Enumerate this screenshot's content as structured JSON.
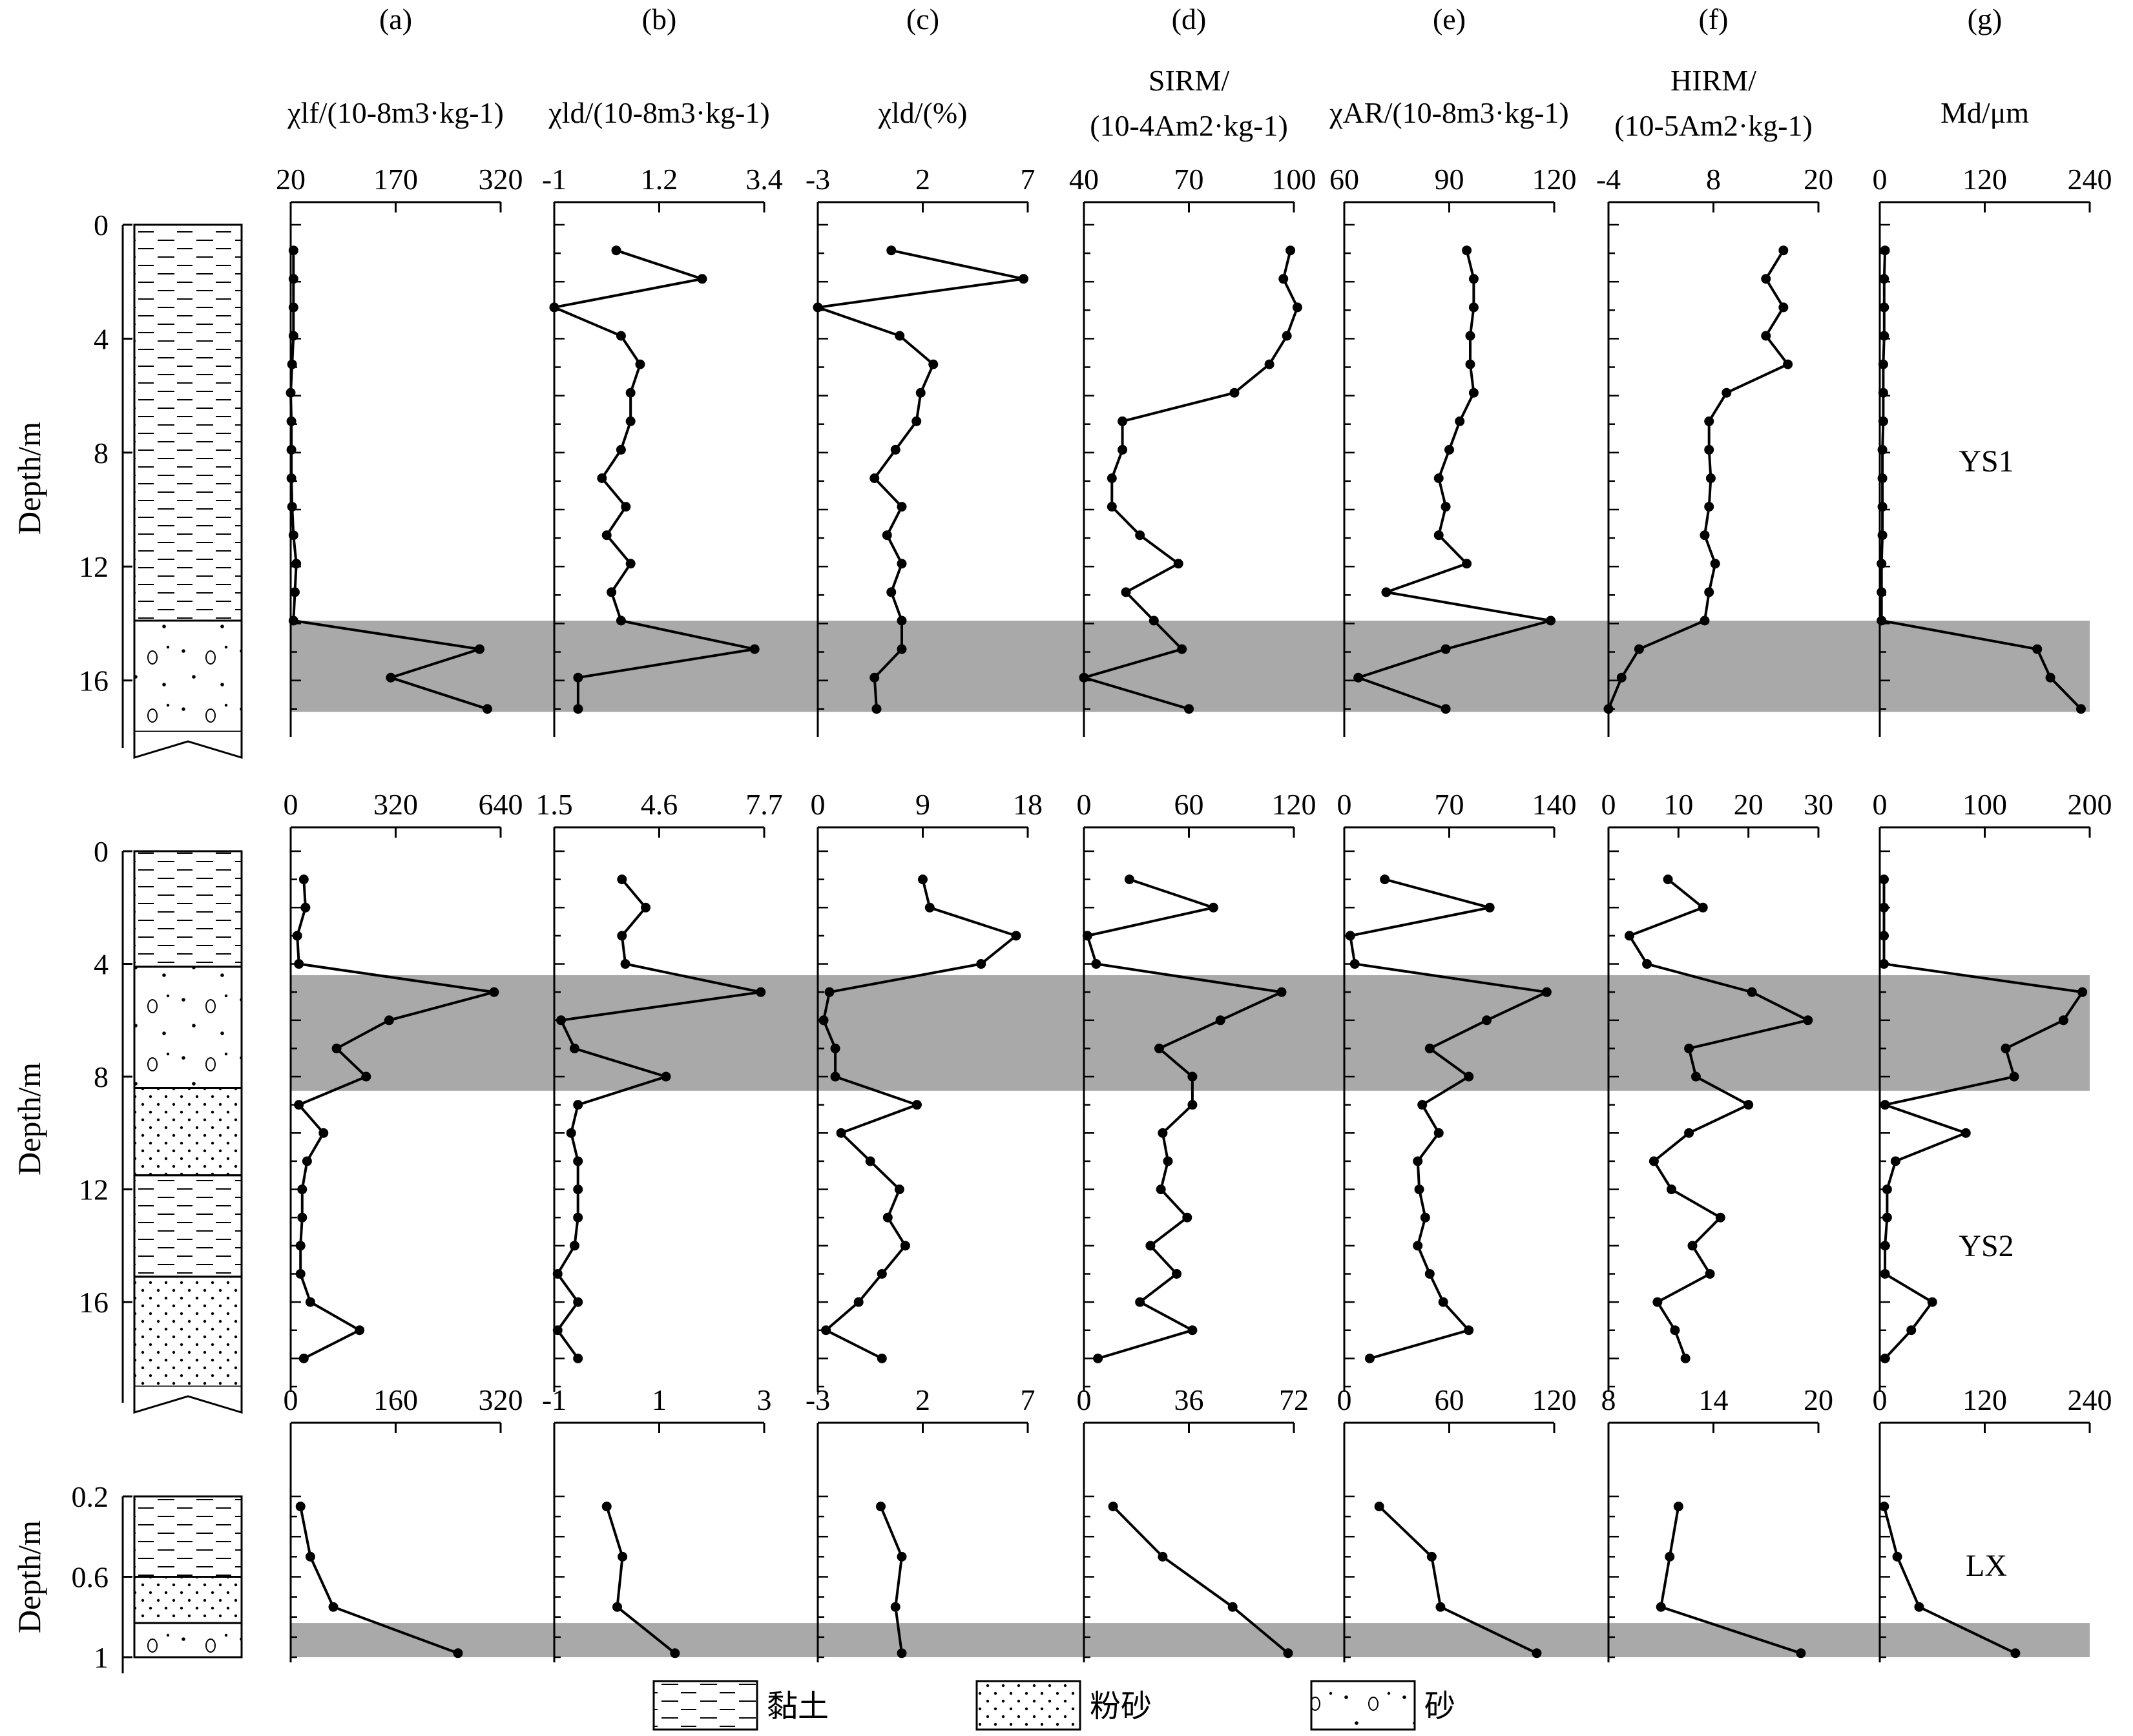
{
  "panel_headers": [
    {
      "letter": "(a)",
      "lines": [
        "χlf/(10-8m3·kg-1)"
      ]
    },
    {
      "letter": "(b)",
      "lines": [
        "χld/(10-8m3·kg-1)"
      ]
    },
    {
      "letter": "(c)",
      "lines": [
        "χld/(%)"
      ]
    },
    {
      "letter": "(d)",
      "lines": [
        "SIRM/",
        "(10-4Am2·kg-1)"
      ]
    },
    {
      "letter": "(e)",
      "lines": [
        "χAR/(10-8m3·kg-1)"
      ]
    },
    {
      "letter": "(f)",
      "lines": [
        "HIRM/",
        "(10-5Am2·kg-1)"
      ]
    },
    {
      "letter": "(g)",
      "lines": [
        "Md/μm"
      ]
    }
  ],
  "depth_label": "Depth/m",
  "legend": [
    {
      "pattern": "clay",
      "label": "黏土"
    },
    {
      "pattern": "silt",
      "label": "粉砂"
    },
    {
      "pattern": "sand",
      "label": "砂"
    }
  ],
  "colors": {
    "shade": "#a9a9a9",
    "line": "#000000"
  },
  "chart_data": [
    {
      "type": "line",
      "core": "YS1",
      "depth_range": [
        0,
        17.8
      ],
      "depth_ticks": [
        0,
        4,
        8,
        12,
        16
      ],
      "depth_ticklabels": [
        "0",
        "4",
        "8",
        "12",
        "16"
      ],
      "shaded_interval": [
        13.9,
        17.1
      ],
      "lithology": [
        {
          "from": 0,
          "to": 13.9,
          "type": "clay"
        },
        {
          "from": 13.9,
          "to": 17.8,
          "type": "sand"
        }
      ],
      "depths": [
        0.9,
        1.9,
        2.9,
        3.9,
        4.9,
        5.9,
        6.9,
        7.9,
        8.9,
        9.9,
        10.9,
        11.9,
        12.9,
        13.9,
        14.9,
        15.9,
        17.0
      ],
      "series": [
        {
          "panel": "a",
          "xlim": [
            20,
            320
          ],
          "ticks": [
            "20",
            "170",
            "320"
          ],
          "values": [
            24,
            24,
            24,
            24,
            22,
            20,
            21,
            21,
            21,
            22,
            24,
            28,
            26,
            24,
            290,
            163,
            301
          ]
        },
        {
          "panel": "b",
          "xlim": [
            -1,
            3.4
          ],
          "ticks": [
            "-1",
            "1.2",
            "3.4"
          ],
          "values": [
            0.3,
            2.1,
            -1.0,
            0.4,
            0.8,
            0.6,
            0.6,
            0.4,
            0.0,
            0.5,
            0.1,
            0.6,
            0.2,
            0.4,
            3.2,
            -0.5,
            -0.5
          ]
        },
        {
          "panel": "c",
          "xlim": [
            -3,
            7
          ],
          "ticks": [
            "-3",
            "2",
            "7"
          ],
          "values": [
            0.5,
            6.8,
            -3.0,
            0.9,
            2.5,
            1.9,
            1.7,
            0.7,
            -0.3,
            1.0,
            0.3,
            1.0,
            0.5,
            1.0,
            1.0,
            -0.3,
            -0.2
          ]
        },
        {
          "panel": "d",
          "xlim": [
            40,
            100
          ],
          "ticks": [
            "40",
            "70",
            "100"
          ],
          "values": [
            99,
            97,
            101,
            98,
            93,
            83,
            51,
            51,
            48,
            48,
            56,
            67,
            52,
            60,
            68,
            40,
            70
          ]
        },
        {
          "panel": "e",
          "xlim": [
            60,
            120
          ],
          "ticks": [
            "60",
            "90",
            "120"
          ],
          "values": [
            95,
            97,
            97,
            96,
            96,
            97,
            93,
            90,
            87,
            89,
            87,
            95,
            72,
            119,
            89,
            64,
            89
          ]
        },
        {
          "panel": "f",
          "xlim": [
            -4,
            20
          ],
          "ticks": [
            "-4",
            "8",
            "20"
          ],
          "values": [
            16,
            14,
            16,
            14,
            16.5,
            9.5,
            7.5,
            7.5,
            7.7,
            7.5,
            7.0,
            8.2,
            7.5,
            7.0,
            -0.5,
            -2.5,
            -4.0
          ]
        },
        {
          "panel": "g",
          "xlim": [
            0,
            240
          ],
          "ticks": [
            "0",
            "120",
            "240"
          ],
          "values": [
            6,
            5,
            5,
            5,
            4,
            4,
            4,
            3,
            3,
            3,
            3,
            2,
            2,
            2,
            180,
            195,
            230
          ]
        }
      ]
    },
    {
      "type": "line",
      "core": "YS2",
      "depth_range": [
        0,
        19
      ],
      "depth_ticks": [
        0,
        4,
        8,
        12,
        16
      ],
      "depth_ticklabels": [
        "0",
        "4",
        "8",
        "12",
        "16"
      ],
      "shaded_interval": [
        4.4,
        8.5
      ],
      "lithology": [
        {
          "from": 0,
          "to": 4.1,
          "type": "clay"
        },
        {
          "from": 4.1,
          "to": 8.4,
          "type": "sand"
        },
        {
          "from": 8.4,
          "to": 11.5,
          "type": "silt"
        },
        {
          "from": 11.5,
          "to": 15.1,
          "type": "clay"
        },
        {
          "from": 15.1,
          "to": 19.0,
          "type": "silt"
        }
      ],
      "depths": [
        1.0,
        2.0,
        3.0,
        4.0,
        5.0,
        6.0,
        7.0,
        8.0,
        9.0,
        10.0,
        11.0,
        12.0,
        13.0,
        14.0,
        15.0,
        16.0,
        17.0,
        18.0
      ],
      "series": [
        {
          "panel": "a",
          "xlim": [
            0,
            640
          ],
          "ticks": [
            "0",
            "320",
            "640"
          ],
          "values": [
            40,
            45,
            20,
            25,
            620,
            300,
            140,
            230,
            25,
            100,
            50,
            35,
            35,
            30,
            30,
            60,
            210,
            40
          ]
        },
        {
          "panel": "b",
          "xlim": [
            1.5,
            7.7
          ],
          "ticks": [
            "1.5",
            "4.6",
            "7.7"
          ],
          "values": [
            3.5,
            4.2,
            3.5,
            3.6,
            7.6,
            1.7,
            2.1,
            4.8,
            2.2,
            2.0,
            2.2,
            2.2,
            2.2,
            2.1,
            1.6,
            2.2,
            1.6,
            2.2
          ]
        },
        {
          "panel": "c",
          "xlim": [
            0,
            18
          ],
          "ticks": [
            "0",
            "9",
            "18"
          ],
          "values": [
            9,
            9.6,
            17,
            14,
            1,
            0.5,
            1.5,
            1.5,
            8.5,
            2,
            4.5,
            7,
            6,
            7.5,
            5.5,
            3.5,
            0.7,
            5.5
          ]
        },
        {
          "panel": "d",
          "xlim": [
            0,
            120
          ],
          "ticks": [
            "0",
            "60",
            "120"
          ],
          "values": [
            26,
            74,
            2,
            7,
            113,
            78,
            43,
            62,
            62,
            45,
            48,
            44,
            59,
            38,
            53,
            32,
            62,
            8
          ]
        },
        {
          "panel": "e",
          "xlim": [
            0,
            140
          ],
          "ticks": [
            "0",
            "70",
            "140"
          ],
          "values": [
            27,
            97,
            4,
            7,
            135,
            95,
            57,
            83,
            52,
            63,
            49,
            50,
            54,
            49,
            57,
            66,
            83,
            17
          ]
        },
        {
          "panel": "f",
          "xlim": [
            0,
            30
          ],
          "ticks": [
            "0",
            "10",
            "20",
            "30"
          ],
          "values": [
            8.5,
            13.5,
            3,
            5.5,
            20.5,
            28.5,
            11.5,
            12.5,
            20,
            11.5,
            6.5,
            9,
            16,
            12,
            14.5,
            7,
            9.5,
            11
          ]
        },
        {
          "panel": "g",
          "xlim": [
            0,
            200
          ],
          "ticks": [
            "0",
            "100",
            "200"
          ],
          "values": [
            4,
            4,
            4,
            4,
            193,
            175,
            120,
            128,
            5,
            82,
            15,
            7,
            7,
            5,
            5,
            50,
            30,
            5
          ]
        }
      ]
    },
    {
      "type": "line",
      "core": "LX",
      "depth_range": [
        0.2,
        1.0
      ],
      "depth_ticks": [
        0.2,
        0.6,
        1.0
      ],
      "depth_ticklabels": [
        "0.2",
        "0.6",
        "1"
      ],
      "shaded_interval": [
        0.83,
        1.0
      ],
      "lithology": [
        {
          "from": 0.2,
          "to": 0.6,
          "type": "clay"
        },
        {
          "from": 0.6,
          "to": 0.83,
          "type": "silt"
        },
        {
          "from": 0.83,
          "to": 1.0,
          "type": "sand"
        }
      ],
      "depths": [
        0.25,
        0.5,
        0.75,
        0.98
      ],
      "series": [
        {
          "panel": "a",
          "xlim": [
            0,
            320
          ],
          "ticks": [
            "0",
            "160",
            "320"
          ],
          "values": [
            15,
            30,
            65,
            255
          ]
        },
        {
          "panel": "b",
          "xlim": [
            -1,
            3
          ],
          "ticks": [
            "-1",
            "1",
            "3"
          ],
          "values": [
            0.0,
            0.3,
            0.2,
            1.3
          ]
        },
        {
          "panel": "c",
          "xlim": [
            -3,
            7
          ],
          "ticks": [
            "-3",
            "2",
            "7"
          ],
          "values": [
            0.0,
            1.0,
            0.7,
            1.0
          ]
        },
        {
          "panel": "d",
          "xlim": [
            0,
            72
          ],
          "ticks": [
            "0",
            "36",
            "72"
          ],
          "values": [
            10,
            27,
            51,
            70
          ]
        },
        {
          "panel": "e",
          "xlim": [
            0,
            120
          ],
          "ticks": [
            "0",
            "60",
            "120"
          ],
          "values": [
            20,
            50,
            55,
            110
          ]
        },
        {
          "panel": "f",
          "xlim": [
            8,
            20
          ],
          "ticks": [
            "8",
            "14",
            "20"
          ],
          "values": [
            12,
            11.5,
            11,
            19
          ]
        },
        {
          "panel": "g",
          "xlim": [
            0,
            240
          ],
          "ticks": [
            "0",
            "120",
            "240"
          ],
          "values": [
            5,
            20,
            45,
            155
          ]
        }
      ]
    }
  ]
}
